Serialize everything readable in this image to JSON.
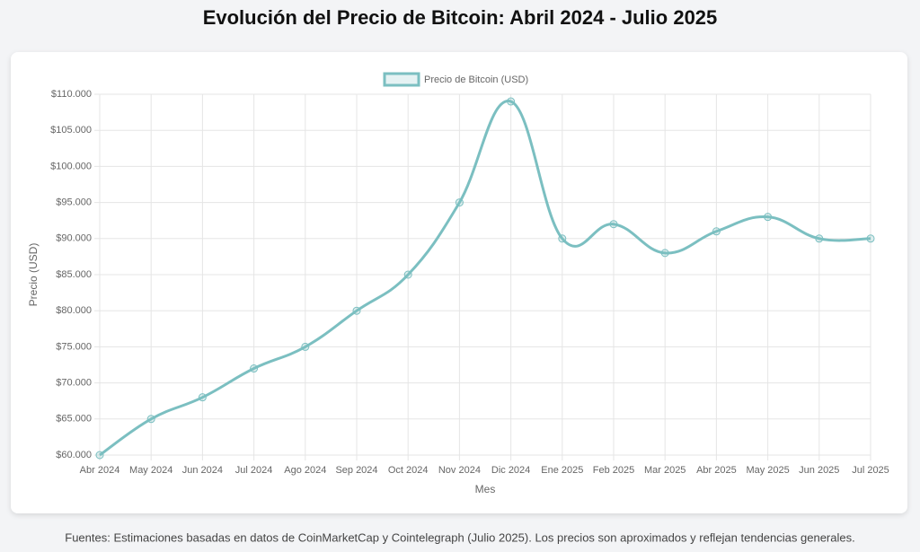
{
  "chart_data": {
    "type": "line",
    "title": "Evolución del Precio de Bitcoin: Abril 2024 - Julio 2025",
    "x_label": "Mes",
    "y_label": "Precio (USD)",
    "categories": [
      "Abr 2024",
      "May 2024",
      "Jun 2024",
      "Jul 2024",
      "Ago 2024",
      "Sep 2024",
      "Oct 2024",
      "Nov 2024",
      "Dic 2024",
      "Ene 2025",
      "Feb 2025",
      "Mar 2025",
      "Abr 2025",
      "May 2025",
      "Jun 2025",
      "Jul 2025"
    ],
    "series": [
      {
        "name": "Precio de Bitcoin (USD)",
        "color": "#7bbfc1",
        "values": [
          60000,
          65000,
          68000,
          72000,
          75000,
          80000,
          85000,
          95000,
          109000,
          90000,
          92000,
          88000,
          91000,
          93000,
          90000,
          90000
        ]
      }
    ],
    "ylim": [
      60000,
      110000
    ],
    "yticks": [
      {
        "value": 60000,
        "label": "$60.000"
      },
      {
        "value": 65000,
        "label": "$65.000"
      },
      {
        "value": 70000,
        "label": "$70.000"
      },
      {
        "value": 75000,
        "label": "$75.000"
      },
      {
        "value": 80000,
        "label": "$80.000"
      },
      {
        "value": 85000,
        "label": "$85.000"
      },
      {
        "value": 90000,
        "label": "$90.000"
      },
      {
        "value": 95000,
        "label": "$95.000"
      },
      {
        "value": 100000,
        "label": "$100.000"
      },
      {
        "value": 105000,
        "label": "$105.000"
      },
      {
        "value": 110000,
        "label": "$110.000"
      }
    ],
    "grid": true,
    "legend": "top",
    "footnote": "Fuentes: Estimaciones basadas en datos de CoinMarketCap y Cointelegraph (Julio 2025). Los precios son aproximados y reflejan tendencias generales."
  }
}
